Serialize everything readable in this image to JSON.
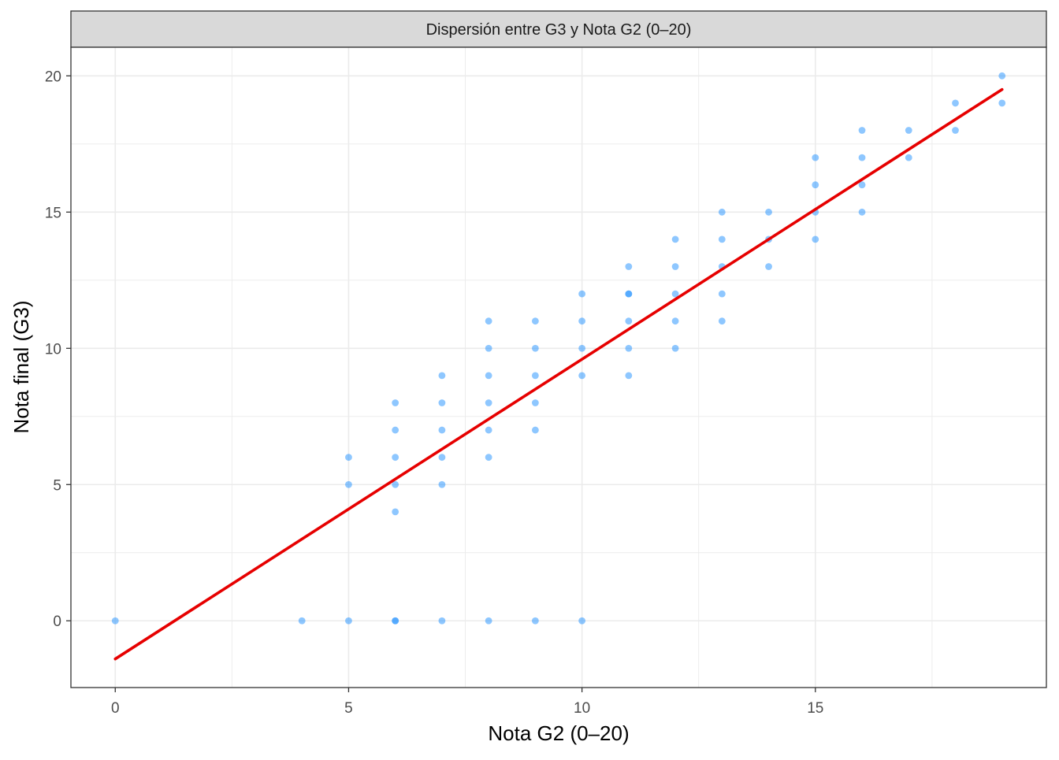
{
  "chart_data": {
    "type": "scatter",
    "title": "Dispersión entre G3 y Nota G2 (0–20)",
    "xlabel": "Nota G2 (0–20)",
    "ylabel": "Nota final (G3)",
    "xlim": [
      -0.95,
      19.95
    ],
    "ylim": [
      -2.45,
      21.05
    ],
    "x_ticks": [
      0,
      5,
      10,
      15
    ],
    "y_ticks": [
      0,
      5,
      10,
      15,
      20
    ],
    "grid": true,
    "legend": "none",
    "colors": {
      "points": "#1e90ff",
      "fit_line": "#e60000",
      "strip": "#d9d9d9",
      "grid": "#ebebeb"
    },
    "series": [
      {
        "kind": "points",
        "x": [
          0,
          4,
          5,
          5,
          5,
          6,
          6,
          6,
          6,
          6,
          6,
          6,
          7,
          7,
          7,
          7,
          7,
          7,
          8,
          8,
          8,
          8,
          8,
          8,
          8,
          9,
          9,
          9,
          9,
          9,
          9,
          10,
          10,
          10,
          10,
          10,
          11,
          11,
          11,
          11,
          11,
          11,
          12,
          12,
          12,
          12,
          12,
          13,
          13,
          13,
          13,
          13,
          14,
          14,
          14,
          15,
          15,
          15,
          15,
          16,
          16,
          16,
          16,
          17,
          17,
          18,
          18,
          19,
          19
        ],
        "y": [
          0,
          0,
          0,
          5,
          6,
          0,
          4,
          5,
          6,
          7,
          8,
          0,
          0,
          5,
          6,
          7,
          8,
          9,
          0,
          6,
          7,
          8,
          9,
          10,
          11,
          0,
          7,
          8,
          9,
          10,
          11,
          0,
          9,
          10,
          11,
          12,
          9,
          10,
          11,
          12,
          13,
          12,
          10,
          11,
          12,
          13,
          14,
          11,
          12,
          13,
          14,
          15,
          13,
          14,
          15,
          14,
          15,
          16,
          17,
          15,
          16,
          17,
          18,
          17,
          18,
          18,
          19,
          19,
          20
        ]
      },
      {
        "kind": "fit_line",
        "x": [
          0,
          19
        ],
        "y": [
          -1.4,
          19.5
        ]
      }
    ]
  }
}
